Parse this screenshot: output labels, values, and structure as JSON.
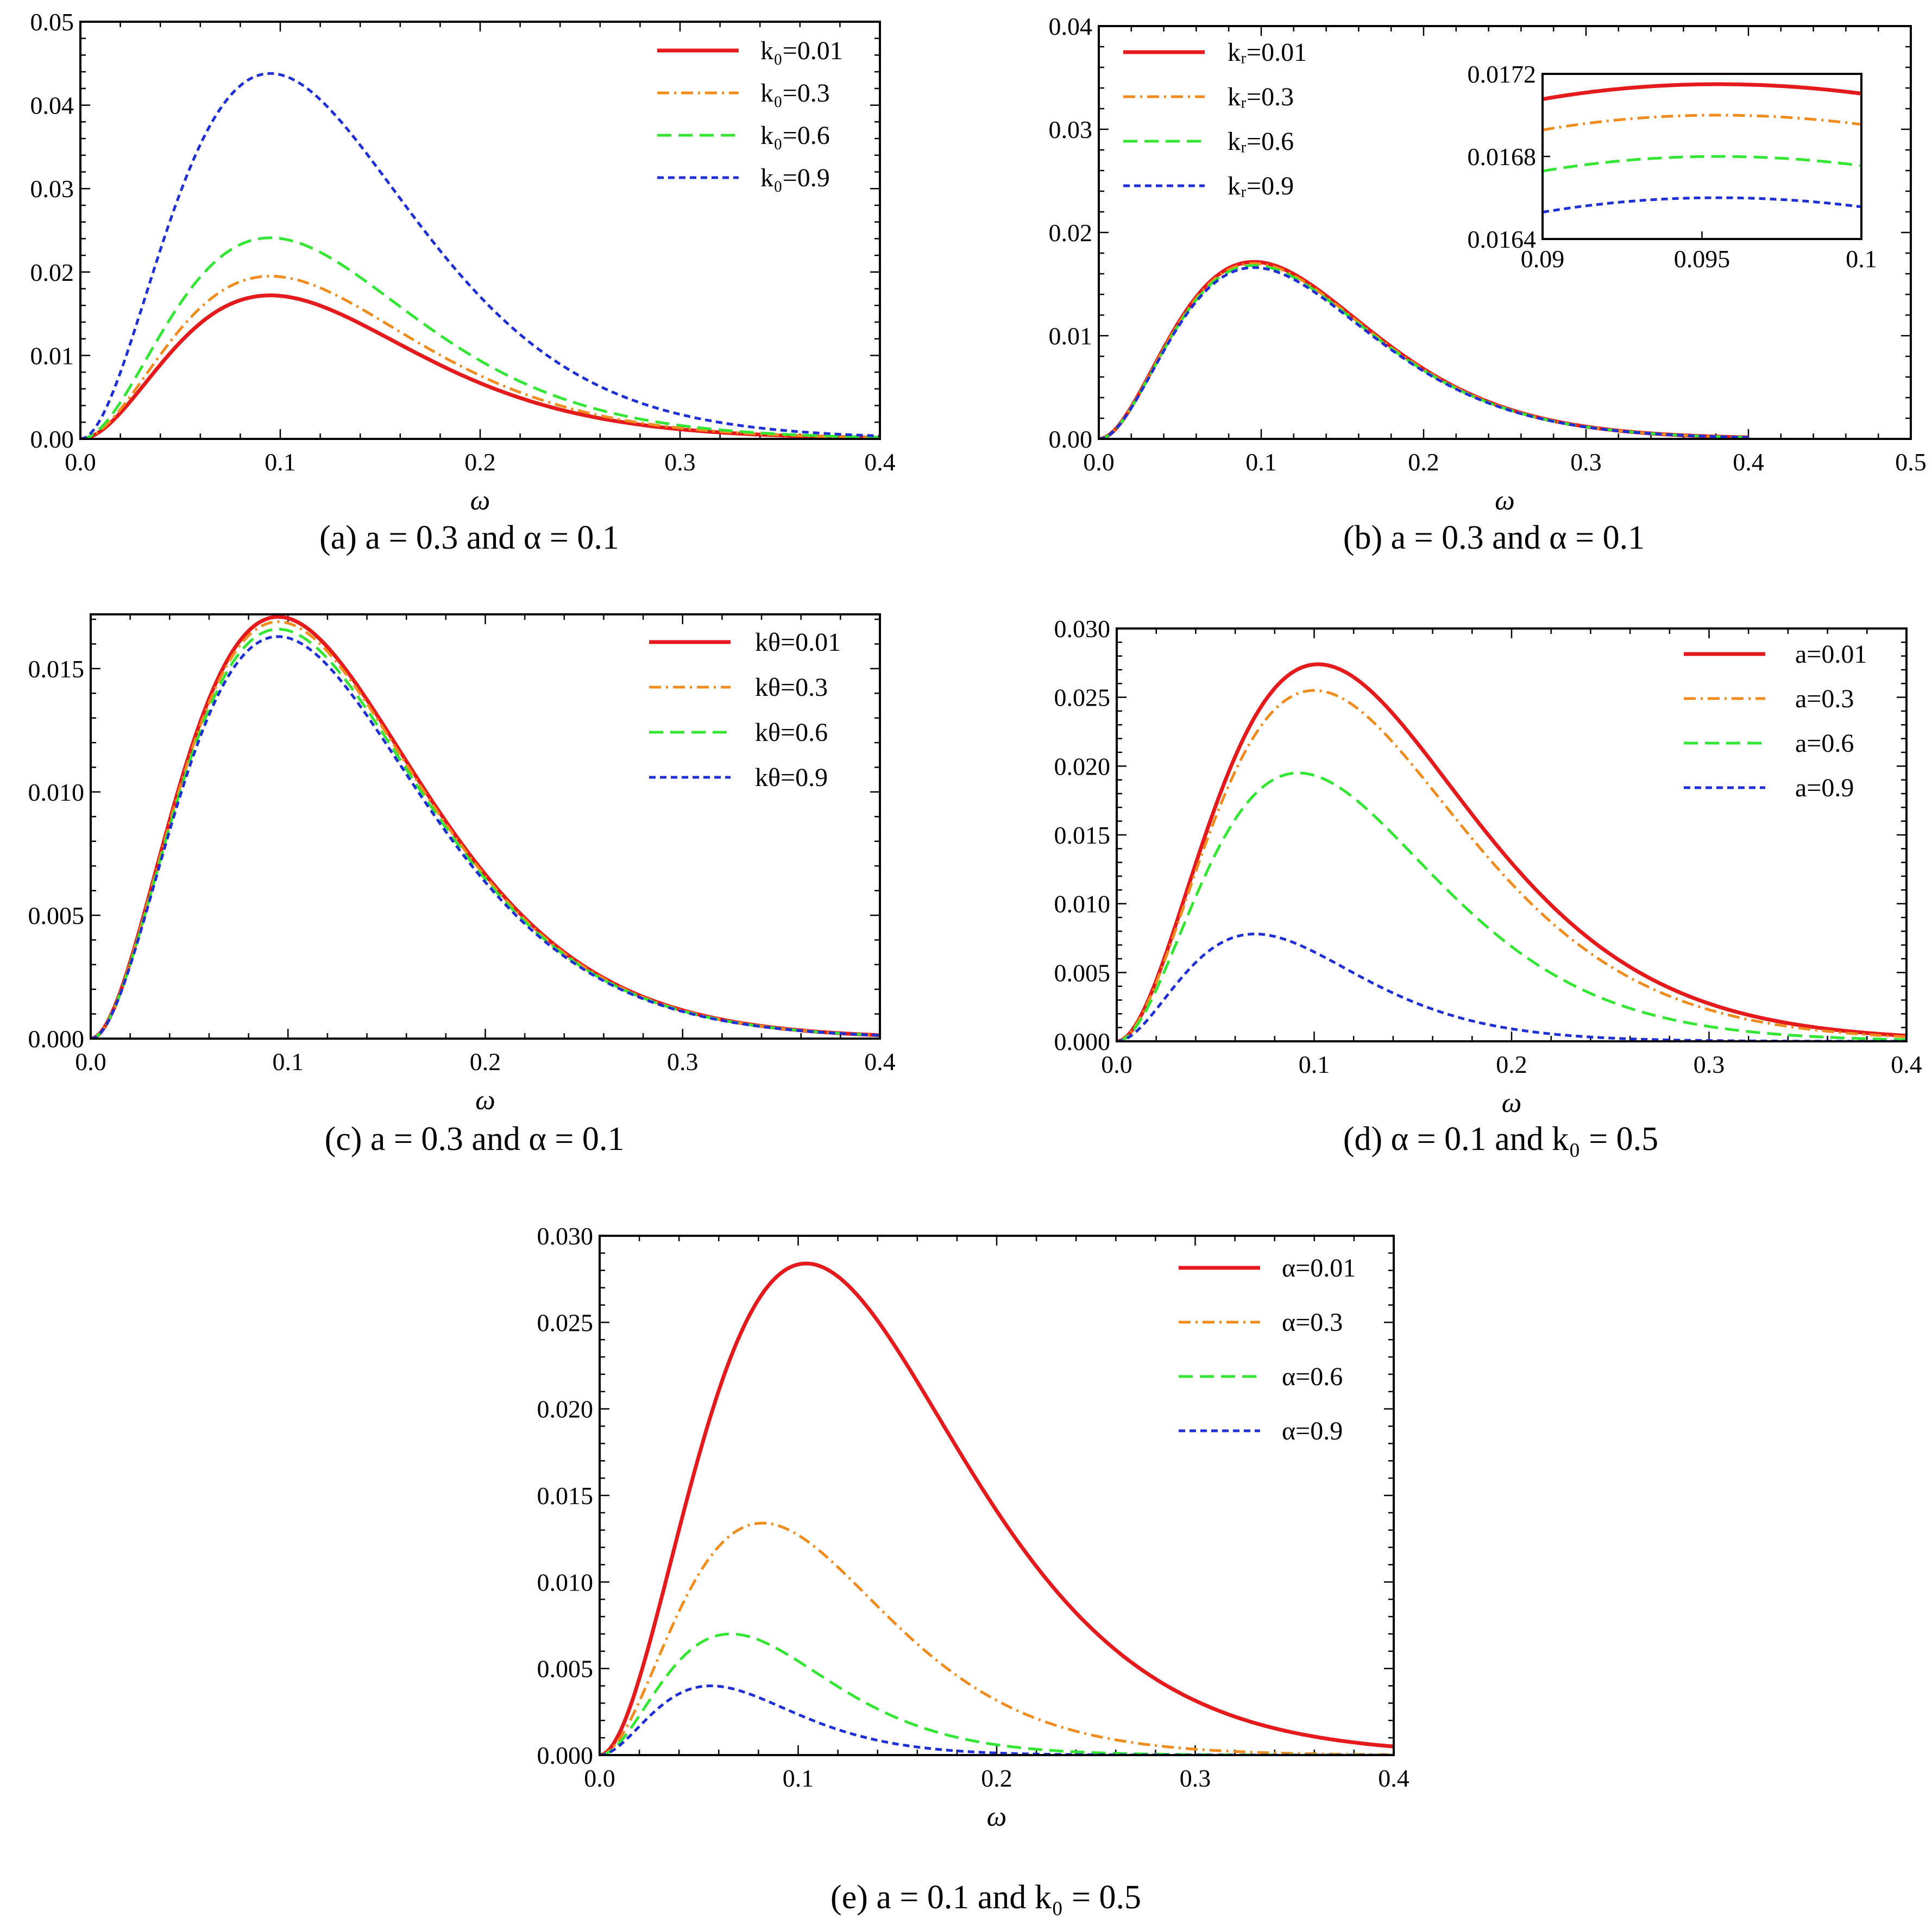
{
  "chart_data": [
    {
      "panel": "a",
      "type": "line",
      "caption": "(a) a = 0.3 and α = 0.1",
      "xlabel": "ω",
      "ylabel": "",
      "xlim": [
        0,
        0.4
      ],
      "ylim": [
        0,
        0.05
      ],
      "xticks": [
        0.0,
        0.1,
        0.2,
        0.3,
        0.4
      ],
      "xtick_labels": [
        "0.0",
        "0.1",
        "0.2",
        "0.3",
        "0.4"
      ],
      "yticks": [
        0,
        0.01,
        0.02,
        0.03,
        0.04,
        0.05
      ],
      "ytick_labels": [
        "0.00",
        "0.01",
        "0.02",
        "0.03",
        "0.04",
        "0.05"
      ],
      "legend_position": "top-right",
      "series": [
        {
          "name": "k₀=0.01",
          "color": "#e41a1c",
          "style": "solid",
          "peak_x": 0.095,
          "peak_y": 0.0172
        },
        {
          "name": "k₀=0.3",
          "color": "#f08c1e",
          "style": "dashdot",
          "peak_x": 0.095,
          "peak_y": 0.0195
        },
        {
          "name": "k₀=0.6",
          "color": "#33e633",
          "style": "dashed",
          "peak_x": 0.095,
          "peak_y": 0.0241
        },
        {
          "name": "k₀=0.9",
          "color": "#1f2fd6",
          "style": "dotted",
          "peak_x": 0.095,
          "peak_y": 0.0438
        }
      ]
    },
    {
      "panel": "b",
      "type": "line",
      "caption": "(b) a = 0.3 and α = 0.1",
      "xlabel": "ω",
      "ylabel": "",
      "xlim": [
        0,
        0.5
      ],
      "ylim": [
        0,
        0.04
      ],
      "xticks": [
        0.0,
        0.1,
        0.2,
        0.3,
        0.4,
        0.5
      ],
      "xtick_labels": [
        "0.0",
        "0.1",
        "0.2",
        "0.3",
        "0.4",
        "0.5"
      ],
      "yticks": [
        0,
        0.01,
        0.02,
        0.03,
        0.04
      ],
      "ytick_labels": [
        "0.00",
        "0.01",
        "0.02",
        "0.03",
        "0.04"
      ],
      "legend_position": "top-left",
      "series": [
        {
          "name": "kᵣ=0.01",
          "color": "#e41a1c",
          "style": "solid",
          "peak_x": 0.0955,
          "peak_y": 0.01715
        },
        {
          "name": "kᵣ=0.3",
          "color": "#f08c1e",
          "style": "dashdot",
          "peak_x": 0.0955,
          "peak_y": 0.017
        },
        {
          "name": "kᵣ=0.6",
          "color": "#33e633",
          "style": "dashed",
          "peak_x": 0.0955,
          "peak_y": 0.0168
        },
        {
          "name": "kᵣ=0.9",
          "color": "#1f2fd6",
          "style": "dotted",
          "peak_x": 0.0955,
          "peak_y": 0.0166
        }
      ],
      "inset": {
        "xlim": [
          0.09,
          0.1
        ],
        "ylim": [
          0.0164,
          0.0172
        ],
        "xticks": [
          0.09,
          0.095,
          0.1
        ],
        "xtick_labels": [
          "0.09",
          "0.095",
          "0.1"
        ],
        "yticks": [
          0.0164,
          0.0168,
          0.0172
        ],
        "ytick_labels": [
          "0.0164",
          "0.0168",
          "0.0172"
        ]
      }
    },
    {
      "panel": "c",
      "type": "line",
      "caption": "(c) a = 0.3 and α = 0.1",
      "xlabel": "ω",
      "ylabel": "",
      "xlim": [
        0,
        0.4
      ],
      "ylim": [
        0,
        0.0172
      ],
      "xticks": [
        0.0,
        0.1,
        0.2,
        0.3,
        0.4
      ],
      "xtick_labels": [
        "0.0",
        "0.1",
        "0.2",
        "0.3",
        "0.4"
      ],
      "yticks": [
        0,
        0.005,
        0.01,
        0.015
      ],
      "ytick_labels": [
        "0.000",
        "0.005",
        "0.010",
        "0.015"
      ],
      "legend_position": "top-right",
      "series": [
        {
          "name": "kθ=0.01",
          "color": "#e41a1c",
          "style": "solid",
          "peak_x": 0.095,
          "peak_y": 0.0171
        },
        {
          "name": "kθ=0.3",
          "color": "#f08c1e",
          "style": "dashdot",
          "peak_x": 0.095,
          "peak_y": 0.0169
        },
        {
          "name": "kθ=0.6",
          "color": "#33e633",
          "style": "dashed",
          "peak_x": 0.095,
          "peak_y": 0.0166
        },
        {
          "name": "kθ=0.9",
          "color": "#1f2fd6",
          "style": "dotted",
          "peak_x": 0.095,
          "peak_y": 0.0163
        }
      ]
    },
    {
      "panel": "d",
      "type": "line",
      "caption": "(d) α = 0.1 and k₀ = 0.5",
      "xlabel": "ω",
      "ylabel": "",
      "xlim": [
        0,
        0.4
      ],
      "ylim": [
        0,
        0.03
      ],
      "xticks": [
        0.0,
        0.1,
        0.2,
        0.3,
        0.4
      ],
      "xtick_labels": [
        "0.0",
        "0.1",
        "0.2",
        "0.3",
        "0.4"
      ],
      "yticks": [
        0,
        0.005,
        0.01,
        0.015,
        0.02,
        0.025,
        0.03
      ],
      "ytick_labels": [
        "0.000",
        "0.005",
        "0.010",
        "0.015",
        "0.020",
        "0.025",
        "0.030"
      ],
      "legend_position": "top-right",
      "series": [
        {
          "name": "a=0.01",
          "color": "#e41a1c",
          "style": "solid",
          "peak_x": 0.102,
          "peak_y": 0.0274
        },
        {
          "name": "a=0.3",
          "color": "#f08c1e",
          "style": "dashdot",
          "peak_x": 0.1,
          "peak_y": 0.0255
        },
        {
          "name": "a=0.6",
          "color": "#33e633",
          "style": "dashed",
          "peak_x": 0.092,
          "peak_y": 0.0195
        },
        {
          "name": "a=0.9",
          "color": "#1f2fd6",
          "style": "dotted",
          "peak_x": 0.07,
          "peak_y": 0.0078
        }
      ]
    },
    {
      "panel": "e",
      "type": "line",
      "caption": "(e) a = 0.1 and k₀ = 0.5",
      "xlabel": "ω",
      "ylabel": "",
      "xlim": [
        0,
        0.4
      ],
      "ylim": [
        0,
        0.03
      ],
      "xticks": [
        0.0,
        0.1,
        0.2,
        0.3,
        0.4
      ],
      "xtick_labels": [
        "0.0",
        "0.1",
        "0.2",
        "0.3",
        "0.4"
      ],
      "yticks": [
        0,
        0.005,
        0.01,
        0.015,
        0.02,
        0.025,
        0.03
      ],
      "ytick_labels": [
        "0.000",
        "0.005",
        "0.010",
        "0.015",
        "0.020",
        "0.025",
        "0.030"
      ],
      "legend_position": "top-right",
      "series": [
        {
          "name": "α=0.01",
          "color": "#e41a1c",
          "style": "solid",
          "peak_x": 0.104,
          "peak_y": 0.0284
        },
        {
          "name": "α=0.3",
          "color": "#f08c1e",
          "style": "dashdot",
          "peak_x": 0.082,
          "peak_y": 0.0134
        },
        {
          "name": "α=0.6",
          "color": "#33e633",
          "style": "dashed",
          "peak_x": 0.066,
          "peak_y": 0.007
        },
        {
          "name": "α=0.9",
          "color": "#1f2fd6",
          "style": "dotted",
          "peak_x": 0.056,
          "peak_y": 0.004
        }
      ]
    }
  ]
}
